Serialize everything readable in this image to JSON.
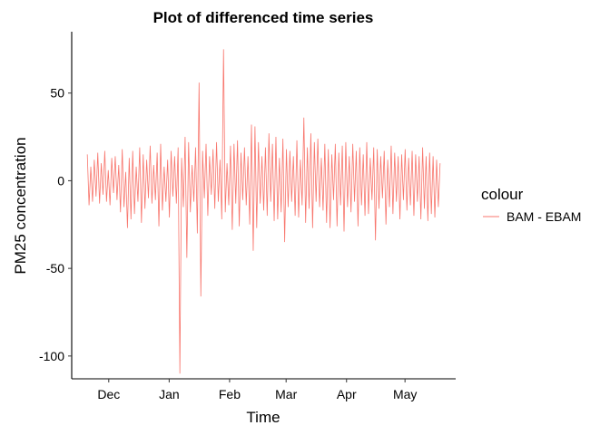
{
  "chart_data": {
    "type": "line",
    "title": "Plot of differenced time series",
    "xlabel": "Time",
    "ylabel": "PM25 concentration",
    "x_ticks": [
      "Dec",
      "Jan",
      "Feb",
      "Mar",
      "Apr",
      "May"
    ],
    "y_ticks": [
      -100,
      -50,
      0,
      50
    ],
    "y_tick_labels": [
      "-100",
      "-50",
      "0",
      "50"
    ],
    "ylim": [
      -113,
      85
    ],
    "xlim": [
      "2015-11-12",
      "2016-05-27"
    ],
    "grid": false,
    "legend": {
      "title": "colour",
      "position": "right",
      "entries": [
        "BAM - EBAM"
      ]
    },
    "series": [
      {
        "name": "BAM - EBAM",
        "color": "#F8766D",
        "x_start": "2015-11-20",
        "x_end": "2016-05-19",
        "values": [
          15,
          -14,
          8,
          -12,
          12,
          -9,
          16,
          -13,
          10,
          -8,
          17,
          -12,
          6,
          -14,
          13,
          -7,
          14,
          -11,
          9,
          -18,
          18,
          -15,
          5,
          -27,
          13,
          -22,
          17,
          -19,
          8,
          -12,
          19,
          -24,
          15,
          -16,
          12,
          -10,
          20,
          -13,
          9,
          -11,
          16,
          -26,
          21,
          -17,
          8,
          -12,
          12,
          -21,
          17,
          -9,
          14,
          -13,
          19,
          -110,
          13,
          -15,
          25,
          -44,
          22,
          -18,
          9,
          -12,
          19,
          -30,
          56,
          -66,
          17,
          -10,
          21,
          -20,
          14,
          -8,
          18,
          -16,
          22,
          -12,
          12,
          -22,
          75,
          -18,
          10,
          -14,
          20,
          -28,
          21,
          -13,
          23,
          -26,
          16,
          -11,
          19,
          -14,
          14,
          -25,
          32,
          -40,
          31,
          -27,
          22,
          -13,
          14,
          -17,
          19,
          -20,
          27,
          -12,
          21,
          -23,
          25,
          -22,
          13,
          -18,
          24,
          -35,
          18,
          -15,
          17,
          -12,
          14,
          -20,
          23,
          -21,
          12,
          -14,
          36,
          -24,
          19,
          -16,
          27,
          -27,
          22,
          -12,
          24,
          -15,
          13,
          -17,
          21,
          -24,
          18,
          -27,
          15,
          -11,
          21,
          -26,
          16,
          -14,
          20,
          -29,
          22,
          -15,
          14,
          -18,
          21,
          -12,
          17,
          -26,
          19,
          -14,
          15,
          -20,
          22,
          -19,
          13,
          -11,
          19,
          -34,
          18,
          -16,
          14,
          -10,
          17,
          -25,
          12,
          -15,
          20,
          -19,
          16,
          -12,
          14,
          -22,
          15,
          -11,
          18,
          -17,
          13,
          -14,
          17,
          -20,
          15,
          -12,
          14,
          -22,
          19,
          -16,
          14,
          -23,
          16,
          -19,
          14,
          -21,
          12,
          -15,
          10
        ]
      }
    ]
  }
}
